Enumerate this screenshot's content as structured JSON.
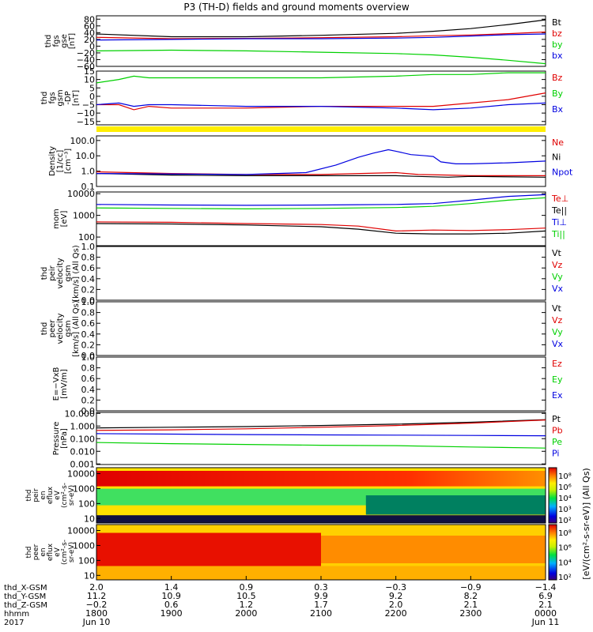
{
  "title": "P3 (TH-D) fields and ground moments overview",
  "colors": {
    "black": "#000000",
    "red": "#e00000",
    "green": "#00d000",
    "blue": "#0000e0",
    "yellow": "#ffee00"
  },
  "chart_data": {
    "type": "line",
    "x_range_hours": [
      18.0,
      24.0
    ],
    "panels": [
      {
        "ylabel": [
          "thd",
          "fgs",
          "gse",
          "[nT]"
        ],
        "scale": "linear",
        "ylim": [
          -60,
          90
        ],
        "ticks": [
          "80",
          "60",
          "40",
          "20",
          "0",
          "−20",
          "−40",
          "−60"
        ],
        "tick_values": [
          80,
          60,
          40,
          20,
          0,
          -20,
          -40,
          -60
        ],
        "series": [
          {
            "name": "Bt",
            "color": "black",
            "x": [
              18.0,
              19.0,
              20.0,
              21.0,
              22.0,
              22.5,
              23.0,
              23.5,
              24.0
            ],
            "y": [
              36,
              28,
              28,
              32,
              38,
              44,
              52,
              64,
              78
            ]
          },
          {
            "name": "bz",
            "color": "red",
            "x": [
              18.0,
              19.0,
              20.0,
              21.0,
              22.0,
              22.5,
              23.0,
              23.5,
              24.0
            ],
            "y": [
              26,
              22,
              23,
              25,
              28,
              31,
              33,
              37,
              42
            ]
          },
          {
            "name": "by",
            "color": "green",
            "x": [
              18.0,
              19.0,
              20.0,
              21.0,
              22.0,
              22.5,
              23.0,
              23.5,
              24.0
            ],
            "y": [
              -14,
              -12,
              -14,
              -18,
              -22,
              -26,
              -33,
              -42,
              -52
            ]
          },
          {
            "name": "bx",
            "color": "blue",
            "x": [
              18.0,
              19.0,
              20.0,
              21.0,
              22.0,
              22.5,
              23.0,
              23.5,
              24.0
            ],
            "y": [
              18,
              20,
              22,
              22,
              24,
              26,
              30,
              34,
              36
            ]
          }
        ]
      },
      {
        "ylabel": [
          "thd",
          "fgs",
          "gsm",
          "-DP",
          "[nT]"
        ],
        "scale": "linear",
        "ylim": [
          -17,
          15
        ],
        "ticks": [
          "15",
          "10",
          "5",
          "0",
          "−5",
          "−10",
          "−15"
        ],
        "tick_values": [
          15,
          10,
          5,
          0,
          -5,
          -10,
          -15
        ],
        "series": [
          {
            "name": "Bz",
            "color": "red",
            "x": [
              18.0,
              18.3,
              18.5,
              18.7,
              19.0,
              20.0,
              21.0,
              22.0,
              22.5,
              23.0,
              23.5,
              24.0
            ],
            "y": [
              -5,
              -5,
              -8,
              -6,
              -7,
              -7,
              -6,
              -6,
              -6,
              -4,
              -2,
              2
            ]
          },
          {
            "name": "By",
            "color": "green",
            "x": [
              18.0,
              18.3,
              18.5,
              18.7,
              19.0,
              20.0,
              21.0,
              22.0,
              22.5,
              23.0,
              23.5,
              24.0
            ],
            "y": [
              8,
              10,
              12,
              11,
              11,
              11,
              11,
              12,
              13,
              13,
              14,
              14
            ]
          },
          {
            "name": "Bx",
            "color": "blue",
            "x": [
              18.0,
              18.3,
              18.5,
              18.7,
              19.0,
              20.0,
              21.0,
              22.0,
              22.5,
              23.0,
              23.5,
              24.0
            ],
            "y": [
              -5,
              -4,
              -6,
              -5,
              -5,
              -6,
              -6,
              -7,
              -8,
              -7,
              -5,
              -4
            ]
          }
        ]
      },
      {
        "ylabel": [
          "Density",
          "[1/cc]",
          "[cm⁻³]"
        ],
        "scale": "log",
        "ylim": [
          0.1,
          200
        ],
        "ticks": [
          "100.0",
          "10.0",
          "1.0",
          "0.1"
        ],
        "tick_values": [
          100,
          10,
          1,
          0.1
        ],
        "series": [
          {
            "name": "Ne",
            "color": "red",
            "x": [
              18.0,
              19.0,
              20.0,
              21.0,
              22.0,
              22.3,
              22.7,
              23.0,
              24.0
            ],
            "y": [
              0.9,
              0.7,
              0.6,
              0.6,
              0.8,
              0.6,
              0.55,
              0.5,
              0.5
            ]
          },
          {
            "name": "Ni",
            "color": "black",
            "x": [
              18.0,
              19.0,
              20.0,
              21.0,
              22.0,
              22.3,
              22.7,
              23.0,
              24.0
            ],
            "y": [
              0.7,
              0.55,
              0.5,
              0.5,
              0.5,
              0.45,
              0.4,
              0.45,
              0.4
            ]
          },
          {
            "name": "Npot",
            "color": "blue",
            "x": [
              18.0,
              20.0,
              20.8,
              21.2,
              21.5,
              21.7,
              21.9,
              22.0,
              22.2,
              22.4,
              22.5,
              22.6,
              22.8,
              23.0,
              23.5,
              24.0
            ],
            "y": [
              0.7,
              0.6,
              0.8,
              2.5,
              8,
              15,
              25,
              20,
              12,
              10,
              9,
              4,
              3,
              3,
              3.5,
              4.5
            ]
          }
        ]
      },
      {
        "ylabel": [
          "mom",
          "[eV]"
        ],
        "scale": "log",
        "ylim": [
          40,
          12000
        ],
        "ticks": [
          "10000",
          "1000",
          "100"
        ],
        "tick_values": [
          10000,
          1000,
          100
        ],
        "series": [
          {
            "name": "Te⊥",
            "color": "red",
            "x": [
              18.0,
              19.0,
              20.0,
              21.0,
              21.5,
              22.0,
              22.5,
              23.0,
              23.5,
              24.0
            ],
            "y": [
              500,
              480,
              420,
              380,
              320,
              190,
              210,
              200,
              220,
              260
            ]
          },
          {
            "name": "Te||",
            "color": "black",
            "x": [
              18.0,
              19.0,
              20.0,
              21.0,
              21.5,
              22.0,
              22.5,
              23.0,
              23.5,
              24.0
            ],
            "y": [
              420,
              400,
              360,
              300,
              230,
              150,
              140,
              140,
              150,
              190
            ]
          },
          {
            "name": "Ti⊥",
            "color": "blue",
            "x": [
              18.0,
              19.0,
              20.0,
              21.0,
              21.5,
              22.0,
              22.5,
              23.0,
              23.5,
              24.0
            ],
            "y": [
              3200,
              3000,
              2900,
              3000,
              3100,
              3200,
              3500,
              5000,
              7500,
              9000
            ]
          },
          {
            "name": "Ti||",
            "color": "green",
            "x": [
              18.0,
              19.0,
              20.0,
              21.0,
              21.5,
              22.0,
              22.5,
              23.0,
              23.5,
              24.0
            ],
            "y": [
              2200,
              2100,
              2000,
              2100,
              2200,
              2300,
              2600,
              3500,
              5000,
              6500
            ]
          }
        ]
      },
      {
        "ylabel": [
          "thd",
          "peir",
          "velocity",
          "gsm",
          "[km/s] (All Qs)"
        ],
        "scale": "linear",
        "ylim": [
          0,
          1
        ],
        "ticks": [
          "1.0",
          "0.8",
          "0.6",
          "0.4",
          "0.2",
          "0.0"
        ],
        "tick_values": [
          1,
          0.8,
          0.6,
          0.4,
          0.2,
          0
        ],
        "legend": [
          {
            "name": "Vt",
            "color": "black"
          },
          {
            "name": "Vz",
            "color": "red"
          },
          {
            "name": "Vy",
            "color": "green"
          },
          {
            "name": "Vx",
            "color": "blue"
          }
        ],
        "series": []
      },
      {
        "ylabel": [
          "thd",
          "peer",
          "velocity",
          "gsm",
          "[km/s] (All Qs)"
        ],
        "scale": "linear",
        "ylim": [
          0,
          1
        ],
        "ticks": [
          "1.0",
          "0.8",
          "0.6",
          "0.4",
          "0.2",
          "0.0"
        ],
        "tick_values": [
          1,
          0.8,
          0.6,
          0.4,
          0.2,
          0
        ],
        "legend": [
          {
            "name": "Vt",
            "color": "black"
          },
          {
            "name": "Vz",
            "color": "red"
          },
          {
            "name": "Vy",
            "color": "green"
          },
          {
            "name": "Vx",
            "color": "blue"
          }
        ],
        "series": []
      },
      {
        "ylabel": [
          "E=−VxB",
          "[mV/m]"
        ],
        "scale": "linear",
        "ylim": [
          0,
          1
        ],
        "ticks": [
          "1.0",
          "0.8",
          "0.6",
          "0.4",
          "0.2",
          "0.0"
        ],
        "tick_values": [
          1,
          0.8,
          0.6,
          0.4,
          0.2,
          0
        ],
        "legend": [
          {
            "name": "Ez",
            "color": "red"
          },
          {
            "name": "Ey",
            "color": "green"
          },
          {
            "name": "Ex",
            "color": "blue"
          }
        ],
        "series": []
      },
      {
        "ylabel": [
          "Pressure",
          "[nPa]"
        ],
        "scale": "log",
        "ylim": [
          0.0009,
          12
        ],
        "ticks": [
          "10.000",
          "1.000",
          "0.100",
          "0.010",
          "0.001"
        ],
        "tick_values": [
          10,
          1,
          0.1,
          0.01,
          0.001
        ],
        "series": [
          {
            "name": "Pt",
            "color": "black",
            "x": [
              18.0,
              19.0,
              20.0,
              21.0,
              22.0,
              23.0,
              24.0
            ],
            "y": [
              0.7,
              0.8,
              0.9,
              1.1,
              1.4,
              2.0,
              3.2
            ]
          },
          {
            "name": "Pb",
            "color": "red",
            "x": [
              18.0,
              19.0,
              20.0,
              21.0,
              22.0,
              23.0,
              24.0
            ],
            "y": [
              0.45,
              0.5,
              0.6,
              0.8,
              1.1,
              1.7,
              3.0
            ]
          },
          {
            "name": "Pe",
            "color": "green",
            "x": [
              18.0,
              19.0,
              20.0,
              21.0,
              22.0,
              23.0,
              24.0
            ],
            "y": [
              0.05,
              0.04,
              0.035,
              0.03,
              0.028,
              0.022,
              0.018
            ]
          },
          {
            "name": "Pi",
            "color": "blue",
            "x": [
              18.0,
              19.0,
              20.0,
              21.0,
              22.0,
              23.0,
              24.0
            ],
            "y": [
              0.25,
              0.23,
              0.21,
              0.2,
              0.19,
              0.18,
              0.17
            ]
          }
        ]
      }
    ],
    "spectrograms": [
      {
        "ylabel": [
          "thd",
          "peir",
          "en",
          "eflux",
          "eV",
          "(cm²-s-",
          "sr-eV)"
        ],
        "ticks": [
          "10000",
          "1000",
          "100",
          "10"
        ],
        "tick_values": [
          10000,
          1000,
          100,
          10
        ],
        "ylim": [
          5,
          25000
        ]
      },
      {
        "ylabel": [
          "thd",
          "peer",
          "en",
          "eflux",
          "eV",
          "(cm²-s-",
          "sr-eV)"
        ],
        "ticks": [
          "10000",
          "1000",
          "100",
          "10"
        ],
        "tick_values": [
          10000,
          1000,
          100,
          10
        ],
        "ylim": [
          5,
          25000
        ]
      }
    ],
    "colorbar": {
      "label": "[eV/(cm²-s-sr-eV)] (All Qs)",
      "top_ticks": [
        "10⁸",
        "10⁶",
        "10⁴",
        "10³",
        "10²"
      ],
      "bottom_ticks": [
        "10⁸",
        "10⁶",
        "10⁴",
        "10²"
      ]
    },
    "xaxis": {
      "row_labels": [
        "thd_X-GSM",
        "thd_Y-GSM",
        "thd_Z-GSM",
        "hhmm",
        "2017"
      ],
      "columns": [
        [
          "2.0",
          "11.2",
          "−0.2",
          "1800",
          "Jun 10"
        ],
        [
          "1.4",
          "10.9",
          "0.6",
          "1900",
          ""
        ],
        [
          "0.9",
          "10.5",
          "1.2",
          "2000",
          ""
        ],
        [
          "0.3",
          "9.9",
          "1.7",
          "2100",
          ""
        ],
        [
          "−0.3",
          "9.2",
          "2.0",
          "2200",
          ""
        ],
        [
          "−0.9",
          "8.2",
          "2.1",
          "2300",
          ""
        ],
        [
          "−1.4",
          "6.9",
          "2.1",
          "0000",
          "Jun 11"
        ]
      ]
    }
  }
}
